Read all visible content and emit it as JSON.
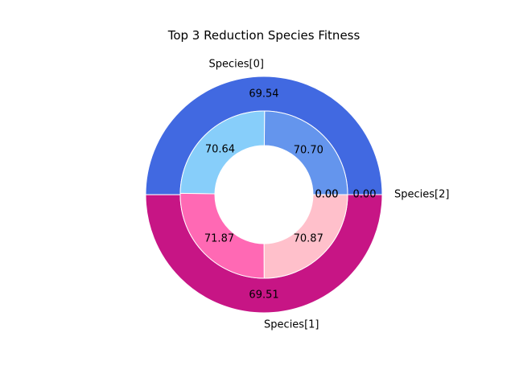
{
  "chart_data": {
    "type": "pie",
    "subtype": "nested-donut",
    "title": "Top 3 Reduction Species Fitness",
    "outer": {
      "labels": [
        "Species[0]",
        "Species[1]",
        "Species[2]"
      ],
      "values": [
        69.54,
        69.51,
        0.0
      ],
      "value_labels": [
        "69.54",
        "69.51",
        "0.00"
      ],
      "colors": [
        "#4169E1",
        "#C71585",
        "#FFD700"
      ]
    },
    "inner": {
      "values": [
        70.7,
        70.64,
        71.87,
        70.87,
        0.0,
        0.0
      ],
      "value_labels": [
        "70.70",
        "70.64",
        "71.87",
        "70.87",
        "0.00",
        "0.00"
      ],
      "colors": [
        "#6495ED",
        "#87CEFA",
        "#FF69B4",
        "#FFC0CB",
        "#FFD700",
        "#FFFACD"
      ]
    }
  }
}
